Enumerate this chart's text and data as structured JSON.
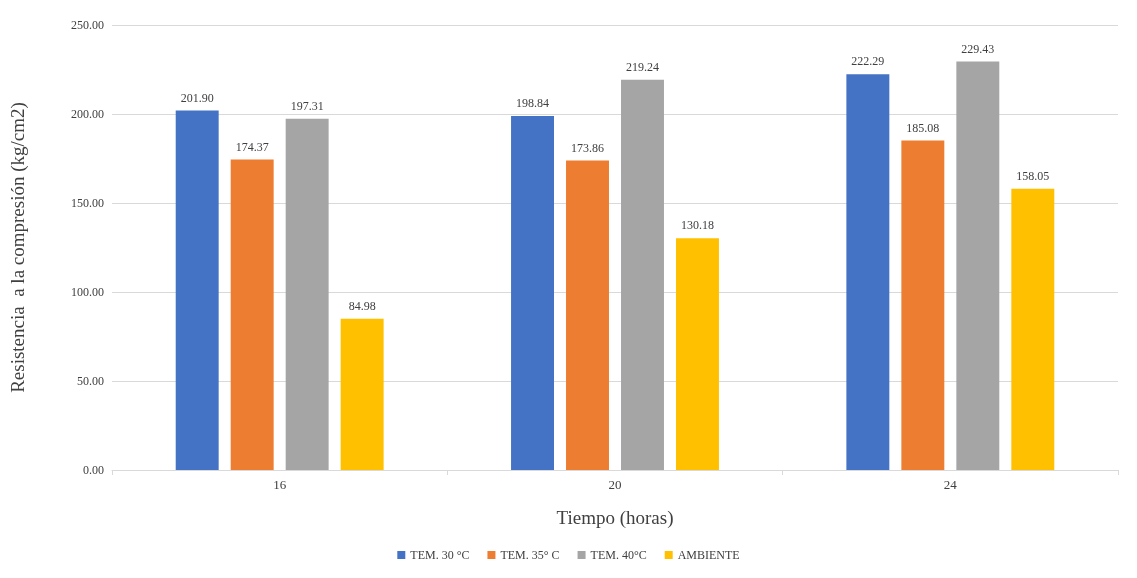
{
  "chart_data": {
    "type": "bar",
    "xlabel": "Tiempo (horas)",
    "ylabel": "Resistencia  a la compresión (kg/cm2)",
    "categories": [
      "16",
      "20",
      "24"
    ],
    "series": [
      {
        "name": "TEM. 30 °C",
        "color": "#4472c4",
        "values": [
          201.9,
          198.84,
          222.29
        ],
        "value_labels": [
          "201.90",
          "198.84",
          "222.29"
        ]
      },
      {
        "name": "TEM. 35° C",
        "color": "#ed7d31",
        "values": [
          174.37,
          173.86,
          185.08
        ],
        "value_labels": [
          "174.37",
          "173.86",
          "185.08"
        ]
      },
      {
        "name": "TEM. 40°C",
        "color": "#a5a5a5",
        "values": [
          197.31,
          219.24,
          229.43
        ],
        "value_labels": [
          "197.31",
          "219.24",
          "229.43"
        ]
      },
      {
        "name": "AMBIENTE",
        "color": "#ffc000",
        "values": [
          84.98,
          130.18,
          158.05
        ],
        "value_labels": [
          "84.98",
          "130.18",
          "158.05"
        ]
      }
    ],
    "ylim": [
      0,
      250
    ],
    "yticks": [
      {
        "value": 0,
        "label": "0.00"
      },
      {
        "value": 50,
        "label": "50.00"
      },
      {
        "value": 100,
        "label": "100.00"
      },
      {
        "value": 150,
        "label": "150.00"
      },
      {
        "value": 200,
        "label": "200.00"
      },
      {
        "value": 250,
        "label": "250.00"
      }
    ],
    "grid": "y",
    "legend": "bottom"
  }
}
